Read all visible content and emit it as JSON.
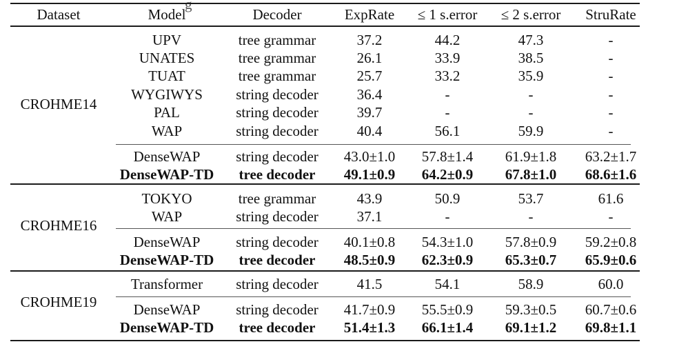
{
  "table": {
    "caption_fragment": "g",
    "headers": [
      "Dataset",
      "Model",
      "Decoder",
      "ExpRate",
      "≤ 1 s.error",
      "≤ 2 s.error",
      "StruRate"
    ],
    "sections": [
      {
        "dataset": "CROHME14",
        "groups": [
          [
            {
              "model": "UPV",
              "decoder": "tree grammar",
              "exprate": "37.2",
              "err1": "44.2",
              "err2": "47.3",
              "strurate": "-",
              "bold": false
            },
            {
              "model": "UNATES",
              "decoder": "tree grammar",
              "exprate": "26.1",
              "err1": "33.9",
              "err2": "38.5",
              "strurate": "-",
              "bold": false
            },
            {
              "model": "TUAT",
              "decoder": "tree grammar",
              "exprate": "25.7",
              "err1": "33.2",
              "err2": "35.9",
              "strurate": "-",
              "bold": false
            },
            {
              "model": "WYGIWYS",
              "decoder": "string decoder",
              "exprate": "36.4",
              "err1": "-",
              "err2": "-",
              "strurate": "-",
              "bold": false
            },
            {
              "model": "PAL",
              "decoder": "string decoder",
              "exprate": "39.7",
              "err1": "-",
              "err2": "-",
              "strurate": "-",
              "bold": false
            },
            {
              "model": "WAP",
              "decoder": "string decoder",
              "exprate": "40.4",
              "err1": "56.1",
              "err2": "59.9",
              "strurate": "-",
              "bold": false
            }
          ],
          [
            {
              "model": "DenseWAP",
              "decoder": "string decoder",
              "exprate": "43.0±1.0",
              "err1": "57.8±1.4",
              "err2": "61.9±1.8",
              "strurate": "63.2±1.7",
              "bold": false
            },
            {
              "model": "DenseWAP-TD",
              "decoder": "tree decoder",
              "exprate": "49.1±0.9",
              "err1": "64.2±0.9",
              "err2": "67.8±1.0",
              "strurate": "68.6±1.6",
              "bold": true
            }
          ]
        ]
      },
      {
        "dataset": "CROHME16",
        "groups": [
          [
            {
              "model": "TOKYO",
              "decoder": "tree grammar",
              "exprate": "43.9",
              "err1": "50.9",
              "err2": "53.7",
              "strurate": "61.6",
              "bold": false
            },
            {
              "model": "WAP",
              "decoder": "string decoder",
              "exprate": "37.1",
              "err1": "-",
              "err2": "-",
              "strurate": "-",
              "bold": false
            }
          ],
          [
            {
              "model": "DenseWAP",
              "decoder": "string decoder",
              "exprate": "40.1±0.8",
              "err1": "54.3±1.0",
              "err2": "57.8±0.9",
              "strurate": "59.2±0.8",
              "bold": false
            },
            {
              "model": "DenseWAP-TD",
              "decoder": "tree decoder",
              "exprate": "48.5±0.9",
              "err1": "62.3±0.9",
              "err2": "65.3±0.7",
              "strurate": "65.9±0.6",
              "bold": true
            }
          ]
        ]
      },
      {
        "dataset": "CROHME19",
        "groups": [
          [
            {
              "model": "Transformer",
              "decoder": "string decoder",
              "exprate": "41.5",
              "err1": "54.1",
              "err2": "58.9",
              "strurate": "60.0",
              "bold": false
            }
          ],
          [
            {
              "model": "DenseWAP",
              "decoder": "string decoder",
              "exprate": "41.7±0.9",
              "err1": "55.5±0.9",
              "err2": "59.3±0.5",
              "strurate": "60.7±0.6",
              "bold": false
            },
            {
              "model": "DenseWAP-TD",
              "decoder": "tree decoder",
              "exprate": "51.4±1.3",
              "err1": "66.1±1.4",
              "err2": "69.1±1.2",
              "strurate": "69.8±1.1",
              "bold": true
            }
          ]
        ]
      }
    ]
  }
}
